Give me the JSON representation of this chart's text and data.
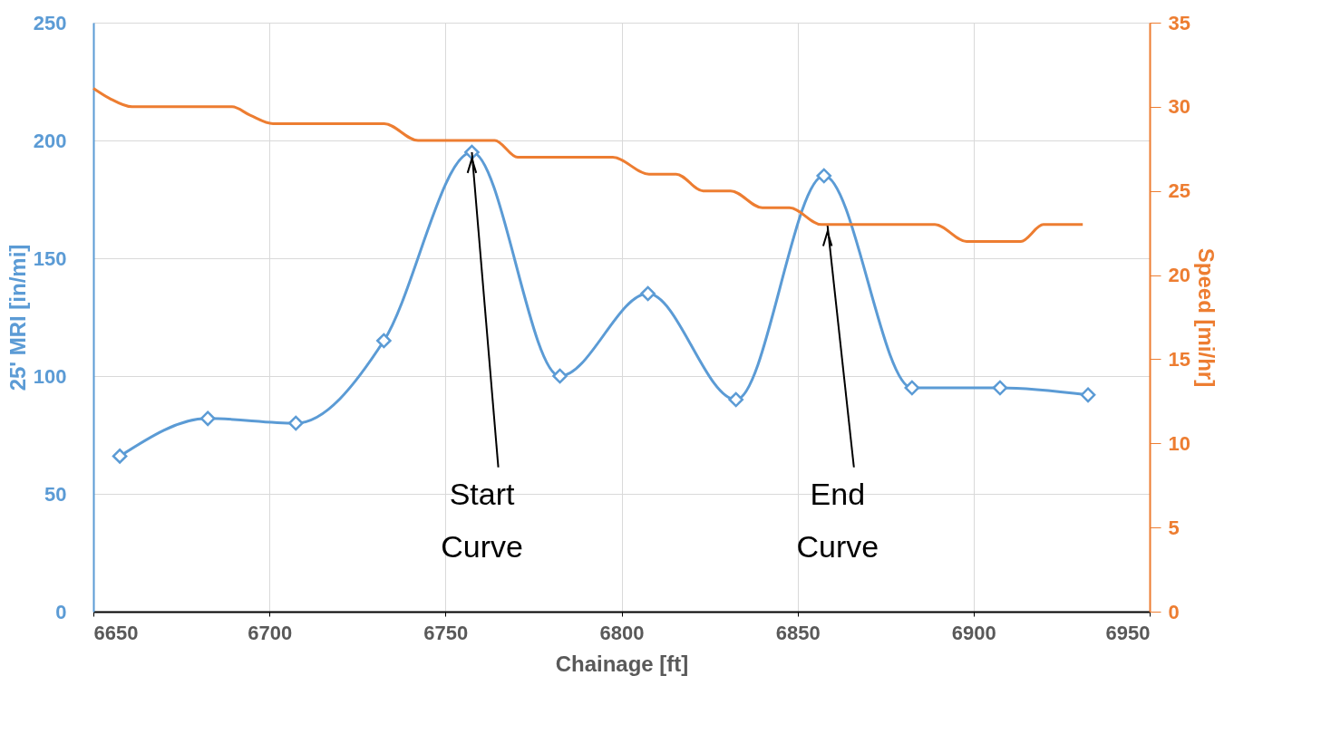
{
  "chart_data": {
    "type": "line",
    "xlabel": "Chainage [ft]",
    "ylabel": "25' MRI [in/mi]",
    "y2label": "Speed [mi/hr]",
    "xlim": [
      6650,
      6950
    ],
    "xticks": [
      6650,
      6700,
      6750,
      6800,
      6850,
      6900,
      6950
    ],
    "ylim": [
      0,
      250
    ],
    "yticks": [
      0,
      50,
      100,
      150,
      200,
      250
    ],
    "y2lim": [
      0,
      35
    ],
    "y2ticks": [
      0,
      5,
      10,
      15,
      20,
      25,
      30,
      35
    ],
    "grid": true,
    "series": [
      {
        "color": "#5b9bd5",
        "marker": "diamond",
        "x": [
          6657.5,
          6682.5,
          6707.5,
          6732.5,
          6757.5,
          6782.5,
          6807.5,
          6832.5,
          6857.5,
          6882.5,
          6907.5,
          6932.5
        ],
        "values": [
          66,
          82,
          80,
          115,
          195,
          100,
          135,
          90,
          185,
          95,
          95,
          92
        ]
      },
      {
        "color": "#ed7d31",
        "axis": "y2",
        "marker": "none",
        "x": [
          6650,
          6654.6,
          6661,
          6689.4,
          6694.5,
          6701,
          6732.6,
          6742.2,
          6764,
          6770.5,
          6797.5,
          6807.8,
          6815.5,
          6823.2,
          6831,
          6840,
          6847.7,
          6856.8,
          6889,
          6898,
          6913.4,
          6919.8,
          6931
        ],
        "values": [
          31.1,
          30.5,
          30,
          30,
          29.5,
          29,
          29,
          28,
          28,
          27,
          27,
          26,
          26,
          25,
          25,
          24,
          24,
          23,
          23,
          22,
          22,
          23,
          23
        ]
      }
    ],
    "annotations": [
      {
        "text": "Start Curve",
        "x": 6757.5,
        "y": 195
      },
      {
        "text": "End Curve",
        "x": 6858.5,
        "y": 164
      }
    ]
  }
}
